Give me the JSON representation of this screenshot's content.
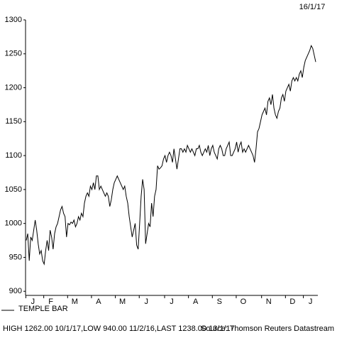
{
  "chart_data": {
    "type": "line",
    "date": "16/1/17",
    "categories": [
      null,
      null,
      null,
      null,
      "J",
      null,
      null,
      null,
      null,
      null,
      null,
      null,
      null,
      null,
      null,
      null,
      "F",
      null,
      null,
      null,
      null,
      null,
      null,
      null,
      null,
      null,
      null,
      null,
      null,
      null,
      null,
      null,
      "M",
      null,
      null,
      null,
      null,
      null,
      null,
      null,
      null,
      null,
      null,
      null,
      null,
      null,
      null,
      null,
      "A",
      null,
      null,
      null,
      null,
      null,
      null,
      null,
      null,
      null,
      null,
      null,
      null,
      null,
      null,
      null,
      "M",
      null,
      null,
      null,
      null,
      null,
      null,
      null,
      null,
      null,
      null,
      null,
      null,
      null,
      null,
      null,
      "J",
      null,
      null,
      null,
      null,
      null,
      null,
      null,
      null,
      null,
      null,
      null,
      null,
      null,
      null,
      null,
      null,
      "J",
      null,
      null,
      null,
      null,
      null,
      null,
      null,
      null,
      null,
      null,
      null,
      null,
      null,
      null,
      null,
      "A",
      null,
      null,
      null,
      null,
      null,
      null,
      null,
      null,
      null,
      null,
      null,
      null,
      null,
      null,
      null,
      "S",
      null,
      null,
      null,
      null,
      null,
      null,
      null,
      null,
      null,
      null,
      null,
      null,
      null,
      null,
      null,
      "O",
      null,
      null,
      null,
      null,
      null,
      null,
      null,
      null,
      null,
      null,
      null,
      null,
      null,
      null,
      null,
      null,
      "N",
      null,
      null,
      null,
      null,
      null,
      null,
      null,
      null,
      null,
      null,
      null,
      null,
      null,
      null,
      null,
      "D",
      null,
      null,
      null,
      null,
      null,
      null,
      null,
      null,
      null,
      null,
      null,
      "J",
      null,
      null,
      null,
      null
    ],
    "series": [
      {
        "name": "TEMPLE BAR",
        "color": "#000000",
        "values": [
          975,
          985,
          945,
          980,
          975,
          990,
          1005,
          990,
          970,
          955,
          960,
          945,
          940,
          960,
          975,
          960,
          990,
          980,
          962,
          985,
          995,
          1000,
          1010,
          1020,
          1025,
          1015,
          1010,
          980,
          1000,
          998,
          1002,
          1000,
          1005,
          995,
          1000,
          1010,
          1005,
          1015,
          1010,
          1030,
          1040,
          1045,
          1040,
          1055,
          1050,
          1060,
          1050,
          1070,
          1070,
          1050,
          1055,
          1050,
          1045,
          1040,
          1045,
          1040,
          1025,
          1035,
          1050,
          1060,
          1065,
          1070,
          1065,
          1060,
          1055,
          1050,
          1055,
          1040,
          1030,
          1010,
          995,
          980,
          990,
          1000,
          968,
          962,
          1000,
          1040,
          1065,
          1050,
          970,
          985,
          1000,
          995,
          1030,
          1010,
          1040,
          1050,
          1085,
          1080,
          1082,
          1085,
          1095,
          1100,
          1090,
          1100,
          1105,
          1100,
          1090,
          1110,
          1095,
          1080,
          1095,
          1110,
          1110,
          1105,
          1110,
          1105,
          1115,
          1110,
          1105,
          1110,
          1105,
          1100,
          1110,
          1110,
          1115,
          1105,
          1100,
          1105,
          1110,
          1105,
          1115,
          1100,
          1110,
          1115,
          1105,
          1100,
          1095,
          1110,
          1115,
          1110,
          1100,
          1100,
          1110,
          1115,
          1120,
          1100,
          1100,
          1105,
          1110,
          1120,
          1105,
          1115,
          1120,
          1105,
          1110,
          1105,
          1110,
          1115,
          1110,
          1105,
          1100,
          1090,
          1110,
          1135,
          1140,
          1150,
          1160,
          1165,
          1170,
          1160,
          1180,
          1185,
          1175,
          1190,
          1170,
          1160,
          1155,
          1165,
          1170,
          1185,
          1190,
          1180,
          1195,
          1200,
          1205,
          1195,
          1210,
          1215,
          1210,
          1215,
          1210,
          1220,
          1225,
          1215,
          1230,
          1240,
          1245,
          1250,
          1255,
          1262,
          1258,
          1248,
          1238
        ]
      }
    ],
    "ylim": [
      895,
      1300
    ],
    "yticks": [
      900,
      950,
      1000,
      1050,
      1100,
      1150,
      1200,
      1250,
      1300
    ],
    "footer": "HIGH 1262.00 10/1/17,LOW 940.00 11/2/16,LAST 1238.00 13/1/17",
    "source": "Source: Thomson Reuters Datastream"
  }
}
